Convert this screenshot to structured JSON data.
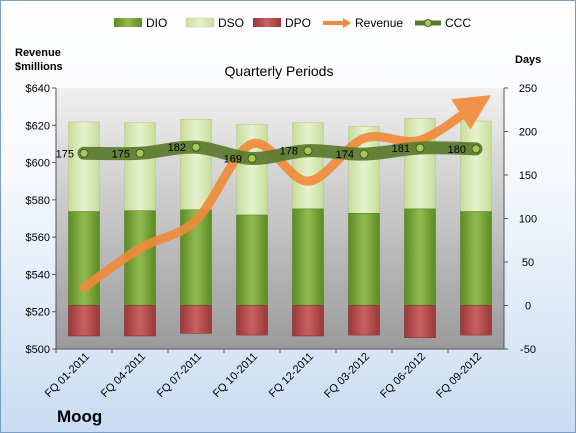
{
  "company": "Moog",
  "chart_data": {
    "type": "bar",
    "title": "",
    "subtitle": "Quarterly Periods",
    "left_axis_title": [
      "Revenue",
      "$millions"
    ],
    "right_axis_title": "Days",
    "categories": [
      "FQ 01-2011",
      "FQ 04-2011",
      "FQ 07-2011",
      "FQ 10-2011",
      "FQ 12-2011",
      "FQ 03-2012",
      "FQ 06-2012",
      "FQ 09-2012"
    ],
    "left_ticks": [
      "$500",
      "$520",
      "$540",
      "$560",
      "$580",
      "$600",
      "$620",
      "$640"
    ],
    "right_ticks": [
      "-50",
      "0",
      "50",
      "100",
      "150",
      "200",
      "250"
    ],
    "ylim_left": [
      500,
      640
    ],
    "ylim_right": [
      -50,
      250
    ],
    "series": [
      {
        "name": "DIO",
        "kind": "stacked-bar",
        "axis": "right",
        "color": "#7aa33a",
        "values": [
          108,
          109,
          110,
          104,
          111,
          106,
          111,
          108
        ]
      },
      {
        "name": "DSO",
        "kind": "stacked-bar",
        "axis": "right",
        "color": "#dbe9b4",
        "values": [
          103,
          101,
          104,
          104,
          99,
          100,
          104,
          104
        ]
      },
      {
        "name": "DPO",
        "kind": "negative-bar",
        "axis": "right",
        "color": "#b84c4c",
        "values": [
          -35,
          -35,
          -32,
          -34,
          -35,
          -34,
          -37,
          -34
        ]
      },
      {
        "name": "Revenue",
        "kind": "line",
        "axis": "left",
        "color": "#f08a3a",
        "values": [
          533,
          554,
          569,
          610,
          590,
          613,
          612,
          631
        ]
      },
      {
        "name": "CCC",
        "kind": "line",
        "axis": "right",
        "color": "#5a7a2e",
        "values": [
          175,
          175,
          182,
          169,
          178,
          174,
          181,
          180
        ]
      }
    ],
    "ccc_labels": [
      "175",
      "175",
      "182",
      "169",
      "178",
      "174",
      "181",
      "180"
    ],
    "legend": {
      "position": "top",
      "items": [
        "DIO",
        "DSO",
        "DPO",
        "Revenue",
        "CCC"
      ]
    },
    "grid": false
  }
}
